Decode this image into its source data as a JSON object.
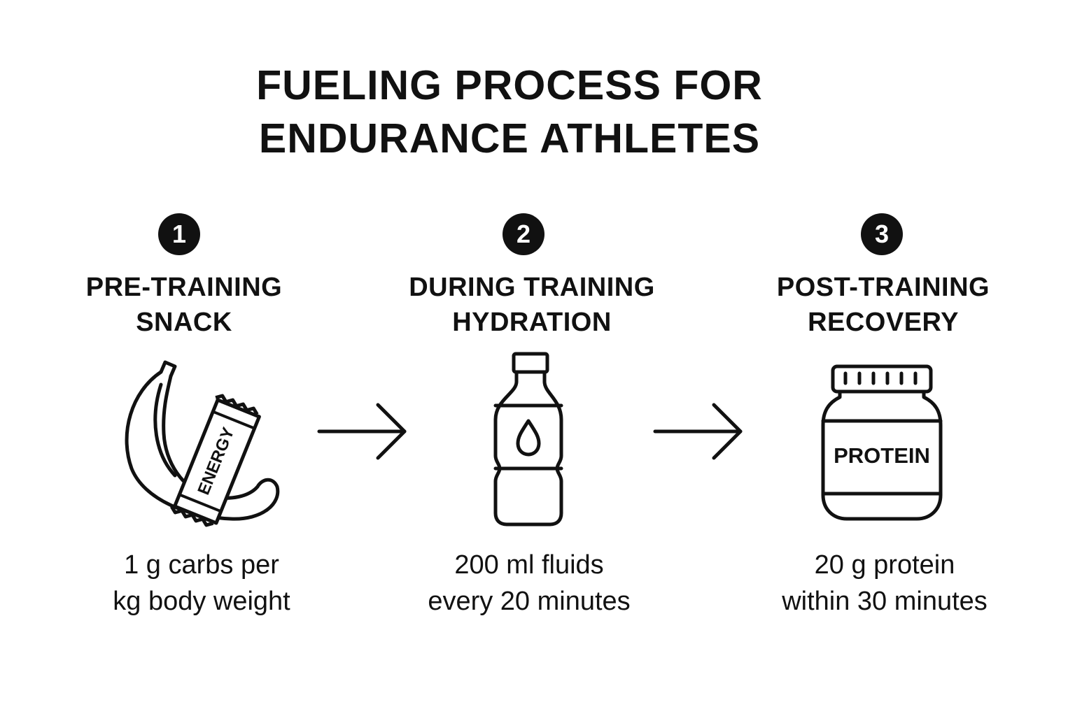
{
  "title": {
    "line1": "FUELING PROCESS FOR",
    "line2": "ENDURANCE ATHLETES"
  },
  "steps": [
    {
      "number": "1",
      "title_line1": "PRE-TRAINING",
      "title_line2": "SNACK",
      "icon": "banana-energy-bar-icon",
      "icon_label": "ENERGY",
      "desc_line1": "1 g carbs per",
      "desc_line2": "kg body weight"
    },
    {
      "number": "2",
      "title_line1": "DURING TRAINING",
      "title_line2": "HYDRATION",
      "icon": "water-bottle-icon",
      "desc_line1": "200 ml fluids",
      "desc_line2": "every 20 minutes"
    },
    {
      "number": "3",
      "title_line1": "POST-TRAINING",
      "title_line2": "RECOVERY",
      "icon": "protein-jar-icon",
      "icon_label": "PROTEIN",
      "desc_line1": "20 g protein",
      "desc_line2": "within 30 minutes"
    }
  ],
  "colors": {
    "ink": "#111111",
    "background": "#ffffff"
  }
}
